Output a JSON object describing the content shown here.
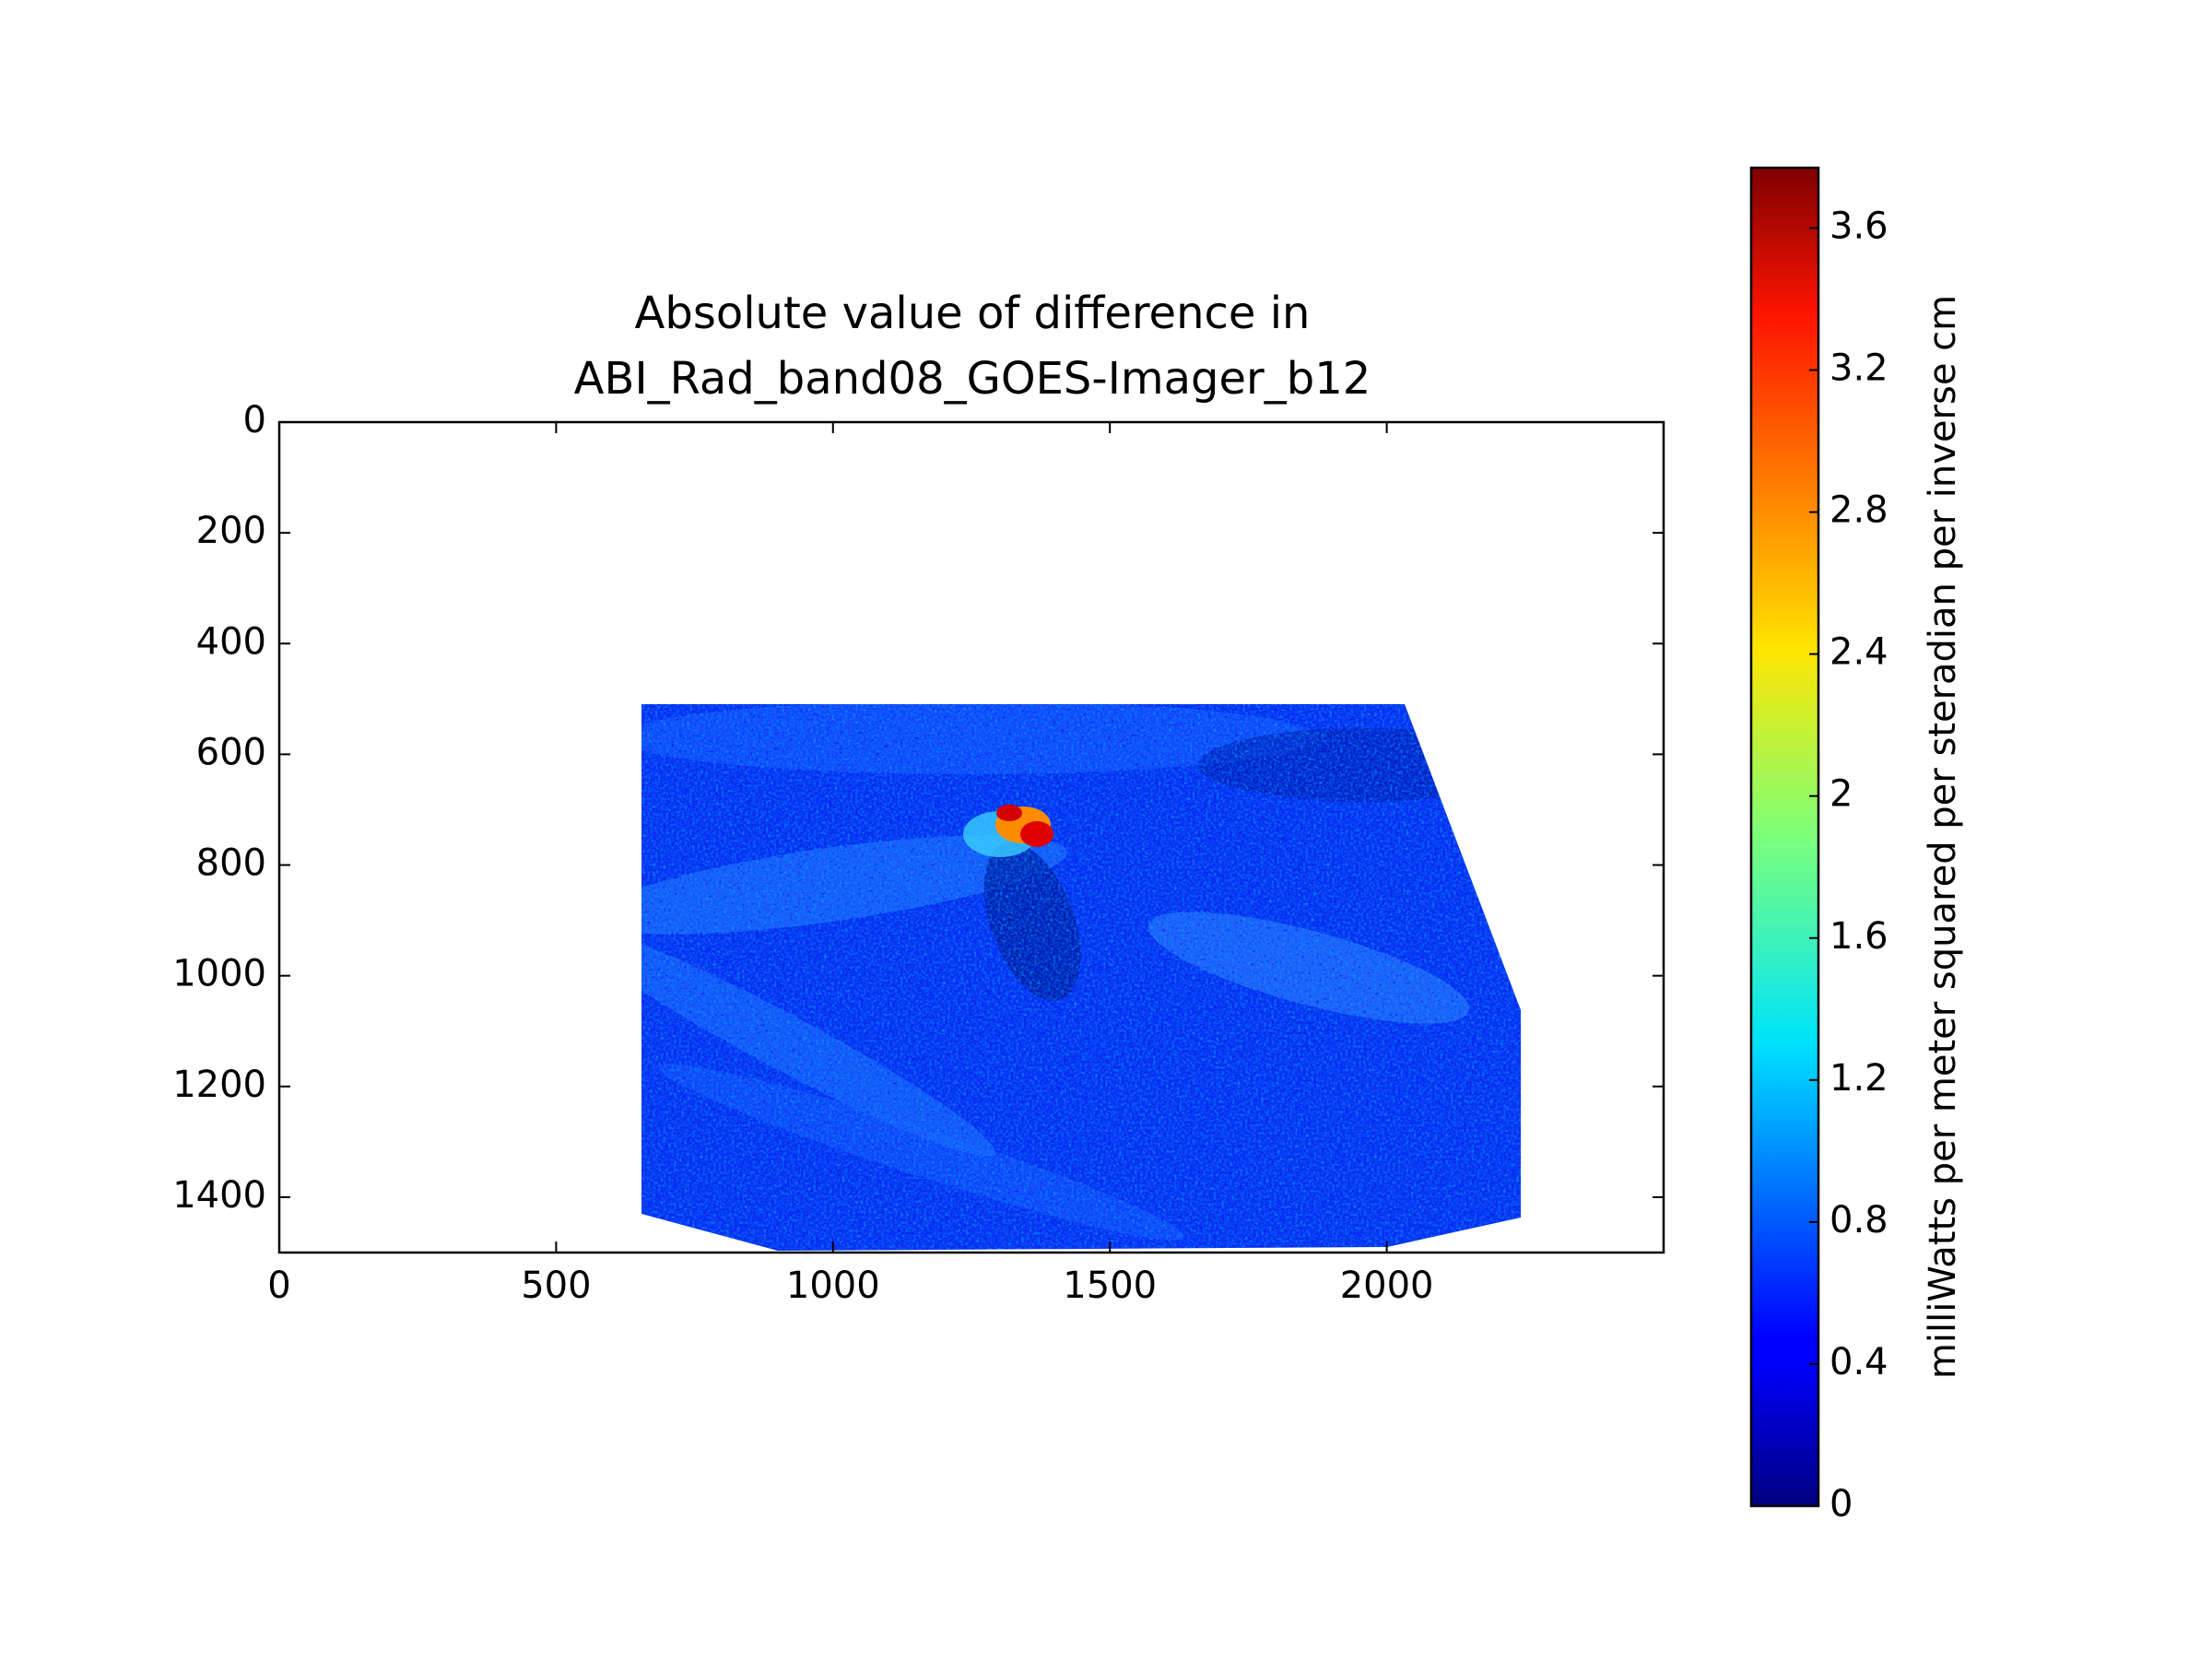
{
  "chart_data": {
    "type": "image",
    "title": [
      "Absolute value of difference in",
      "ABI_Rad_band08_GOES-Imager_b12"
    ],
    "xlim": [
      0,
      2500
    ],
    "xticks": [
      0,
      500,
      1000,
      1500,
      2000
    ],
    "ylim": [
      1500,
      0
    ],
    "yticks": [
      0,
      200,
      400,
      600,
      800,
      1000,
      1200,
      1400
    ],
    "colormap": "jet",
    "clim": [
      0,
      3.77
    ],
    "cticks": [
      0,
      0.4,
      0.8,
      1.2,
      1.6,
      2,
      2.4,
      2.8,
      3.2,
      3.6
    ],
    "colorbar_label": "milliWatts per meter squared per steradian per inverse cm"
  }
}
